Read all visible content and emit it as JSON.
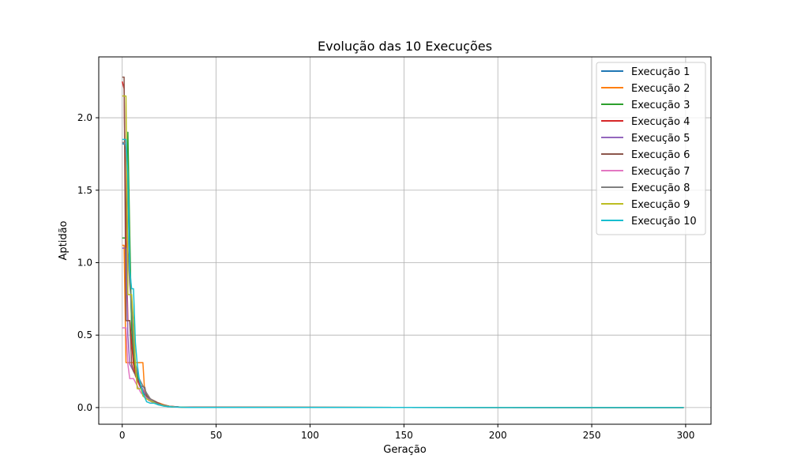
{
  "chart_data": {
    "type": "line",
    "title": "Evolução das 10 Execuções",
    "xlabel": "Geração",
    "ylabel": "Aptidão",
    "xlim": [
      -12.5,
      313.5
    ],
    "ylim": [
      -0.115,
      2.42
    ],
    "xticks": [
      0,
      50,
      100,
      150,
      200,
      250,
      300
    ],
    "yticks": [
      0.0,
      0.5,
      1.0,
      1.5,
      2.0
    ],
    "xtick_labels": [
      "0",
      "50",
      "100",
      "150",
      "200",
      "250",
      "300"
    ],
    "ytick_labels": [
      "0.0",
      "0.5",
      "1.0",
      "1.5",
      "2.0"
    ],
    "grid": true,
    "legend_position": "top-right",
    "series": [
      {
        "name": "Execução 1",
        "color": "#1f77b4",
        "points": [
          [
            0,
            1.82
          ],
          [
            1,
            1.82
          ],
          [
            2,
            1.78
          ],
          [
            3,
            1.5
          ],
          [
            4,
            0.95
          ],
          [
            5,
            0.6
          ],
          [
            6,
            0.42
          ],
          [
            7,
            0.3
          ],
          [
            8,
            0.22
          ],
          [
            9,
            0.16
          ],
          [
            10,
            0.13
          ],
          [
            12,
            0.09
          ],
          [
            14,
            0.06
          ],
          [
            16,
            0.04
          ],
          [
            18,
            0.03
          ],
          [
            20,
            0.02
          ],
          [
            23,
            0.01
          ],
          [
            27,
            0.005
          ],
          [
            35,
            0.002
          ],
          [
            299,
            0.0
          ]
        ]
      },
      {
        "name": "Execução 2",
        "color": "#ff7f0e",
        "points": [
          [
            0,
            1.12
          ],
          [
            1,
            1.12
          ],
          [
            2,
            0.31
          ],
          [
            6,
            0.31
          ],
          [
            7,
            0.31
          ],
          [
            10,
            0.31
          ],
          [
            11,
            0.31
          ],
          [
            12,
            0.1
          ],
          [
            15,
            0.06
          ],
          [
            17,
            0.04
          ],
          [
            20,
            0.03
          ],
          [
            22,
            0.02
          ],
          [
            25,
            0.01
          ],
          [
            30,
            0.004
          ],
          [
            40,
            0.002
          ],
          [
            299,
            0.0
          ]
        ]
      },
      {
        "name": "Execução 3",
        "color": "#2ca02c",
        "points": [
          [
            0,
            1.17
          ],
          [
            1,
            1.17
          ],
          [
            2,
            1.17
          ],
          [
            3,
            1.9
          ],
          [
            4,
            1.2
          ],
          [
            5,
            0.55
          ],
          [
            6,
            0.35
          ],
          [
            7,
            0.25
          ],
          [
            9,
            0.18
          ],
          [
            11,
            0.1
          ],
          [
            13,
            0.07
          ],
          [
            15,
            0.05
          ],
          [
            18,
            0.03
          ],
          [
            21,
            0.015
          ],
          [
            25,
            0.006
          ],
          [
            32,
            0.002
          ],
          [
            299,
            0.0
          ]
        ]
      },
      {
        "name": "Execução 4",
        "color": "#d62728",
        "points": [
          [
            0,
            2.25
          ],
          [
            1,
            2.2
          ],
          [
            2,
            1.2
          ],
          [
            3,
            0.6
          ],
          [
            4,
            0.6
          ],
          [
            5,
            0.45
          ],
          [
            6,
            0.3
          ],
          [
            7,
            0.22
          ],
          [
            9,
            0.16
          ],
          [
            11,
            0.12
          ],
          [
            13,
            0.08
          ],
          [
            15,
            0.06
          ],
          [
            18,
            0.03
          ],
          [
            22,
            0.015
          ],
          [
            26,
            0.006
          ],
          [
            33,
            0.002
          ],
          [
            299,
            0.0
          ]
        ]
      },
      {
        "name": "Execução 5",
        "color": "#9467bd",
        "points": [
          [
            0,
            1.1
          ],
          [
            1,
            1.1
          ],
          [
            2,
            1.1
          ],
          [
            3,
            0.5
          ],
          [
            4,
            0.3
          ],
          [
            6,
            0.25
          ],
          [
            8,
            0.2
          ],
          [
            10,
            0.15
          ],
          [
            12,
            0.1
          ],
          [
            14,
            0.06
          ],
          [
            17,
            0.04
          ],
          [
            20,
            0.02
          ],
          [
            24,
            0.01
          ],
          [
            30,
            0.004
          ],
          [
            38,
            0.001
          ],
          [
            299,
            0.0
          ]
        ]
      },
      {
        "name": "Execução 6",
        "color": "#8c564b",
        "points": [
          [
            0,
            2.28
          ],
          [
            1,
            2.28
          ],
          [
            2,
            0.6
          ],
          [
            3,
            0.6
          ],
          [
            4,
            0.6
          ],
          [
            5,
            0.3
          ],
          [
            6,
            0.25
          ],
          [
            8,
            0.2
          ],
          [
            10,
            0.15
          ],
          [
            12,
            0.14
          ],
          [
            13,
            0.08
          ],
          [
            15,
            0.06
          ],
          [
            18,
            0.04
          ],
          [
            21,
            0.02
          ],
          [
            25,
            0.01
          ],
          [
            30,
            0.004
          ],
          [
            40,
            0.001
          ],
          [
            299,
            0.0
          ]
        ]
      },
      {
        "name": "Execução 7",
        "color": "#e377c2",
        "points": [
          [
            0,
            0.55
          ],
          [
            1,
            0.55
          ],
          [
            2,
            0.55
          ],
          [
            3,
            0.3
          ],
          [
            4,
            0.2
          ],
          [
            6,
            0.2
          ],
          [
            8,
            0.15
          ],
          [
            10,
            0.1
          ],
          [
            12,
            0.08
          ],
          [
            14,
            0.05
          ],
          [
            17,
            0.03
          ],
          [
            20,
            0.02
          ],
          [
            24,
            0.01
          ],
          [
            30,
            0.003
          ],
          [
            38,
            0.001
          ],
          [
            299,
            0.0
          ]
        ]
      },
      {
        "name": "Execução 8",
        "color": "#7f7f7f",
        "points": [
          [
            0,
            1.83
          ],
          [
            1,
            1.83
          ],
          [
            2,
            1.8
          ],
          [
            3,
            1.1
          ],
          [
            4,
            0.85
          ],
          [
            5,
            0.7
          ],
          [
            6,
            0.45
          ],
          [
            7,
            0.3
          ],
          [
            9,
            0.2
          ],
          [
            11,
            0.15
          ],
          [
            13,
            0.1
          ],
          [
            15,
            0.06
          ],
          [
            18,
            0.03
          ],
          [
            22,
            0.015
          ],
          [
            27,
            0.005
          ],
          [
            35,
            0.002
          ],
          [
            299,
            0.0
          ]
        ]
      },
      {
        "name": "Execução 9",
        "color": "#bcbd22",
        "points": [
          [
            0,
            2.15
          ],
          [
            1,
            2.15
          ],
          [
            2,
            2.15
          ],
          [
            3,
            0.78
          ],
          [
            4,
            0.78
          ],
          [
            5,
            0.78
          ],
          [
            6,
            0.6
          ],
          [
            7,
            0.3
          ],
          [
            8,
            0.13
          ],
          [
            9,
            0.13
          ],
          [
            10,
            0.13
          ],
          [
            11,
            0.08
          ],
          [
            13,
            0.06
          ],
          [
            16,
            0.04
          ],
          [
            19,
            0.02
          ],
          [
            23,
            0.01
          ],
          [
            28,
            0.004
          ],
          [
            36,
            0.001
          ],
          [
            299,
            0.0
          ]
        ]
      },
      {
        "name": "Execução 10",
        "color": "#17becf",
        "points": [
          [
            0,
            1.85
          ],
          [
            1,
            1.85
          ],
          [
            2,
            1.85
          ],
          [
            3,
            1.6
          ],
          [
            4,
            0.95
          ],
          [
            5,
            0.82
          ],
          [
            6,
            0.82
          ],
          [
            7,
            0.45
          ],
          [
            8,
            0.3
          ],
          [
            9,
            0.2
          ],
          [
            10,
            0.15
          ],
          [
            11,
            0.1
          ],
          [
            13,
            0.04
          ],
          [
            15,
            0.03
          ],
          [
            17,
            0.03
          ],
          [
            19,
            0.02
          ],
          [
            22,
            0.01
          ],
          [
            27,
            0.004
          ],
          [
            35,
            0.001
          ],
          [
            299,
            0.0
          ]
        ]
      }
    ]
  }
}
